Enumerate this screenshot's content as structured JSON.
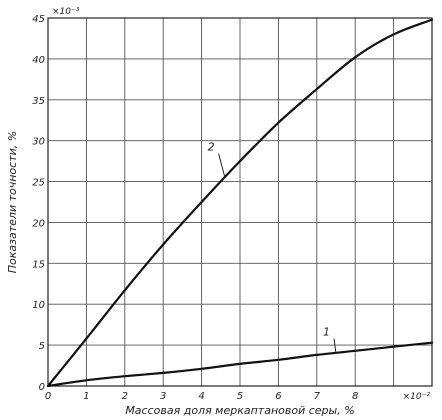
{
  "chart_data": {
    "type": "line",
    "title": "",
    "xlabel": "Массовая доля меркаптановой серы, %",
    "ylabel": "Показатели точности, %",
    "x_multiplier": "×10⁻²",
    "y_multiplier": "×10⁻³",
    "xlim": [
      0,
      10
    ],
    "ylim": [
      0,
      45
    ],
    "x_ticks": [
      "0",
      "1",
      "2",
      "3",
      "4",
      "5",
      "6",
      "7",
      "8"
    ],
    "y_ticks": [
      "0",
      "5",
      "10",
      "15",
      "20",
      "25",
      "30",
      "35",
      "40",
      "45"
    ],
    "grid": true,
    "series": [
      {
        "name": "1",
        "x": [
          0,
          1,
          2,
          3,
          4,
          5,
          6,
          7,
          8,
          9,
          10
        ],
        "y": [
          0,
          0.7,
          1.2,
          1.6,
          2.1,
          2.7,
          3.2,
          3.8,
          4.3,
          4.8,
          5.3
        ]
      },
      {
        "name": "2",
        "x": [
          0,
          1,
          2,
          3,
          4,
          5,
          6,
          7,
          8,
          9,
          10
        ],
        "y": [
          0,
          5.8,
          11.7,
          17.3,
          22.5,
          27.5,
          32.2,
          36.3,
          40.2,
          43.0,
          44.8
        ]
      }
    ]
  }
}
